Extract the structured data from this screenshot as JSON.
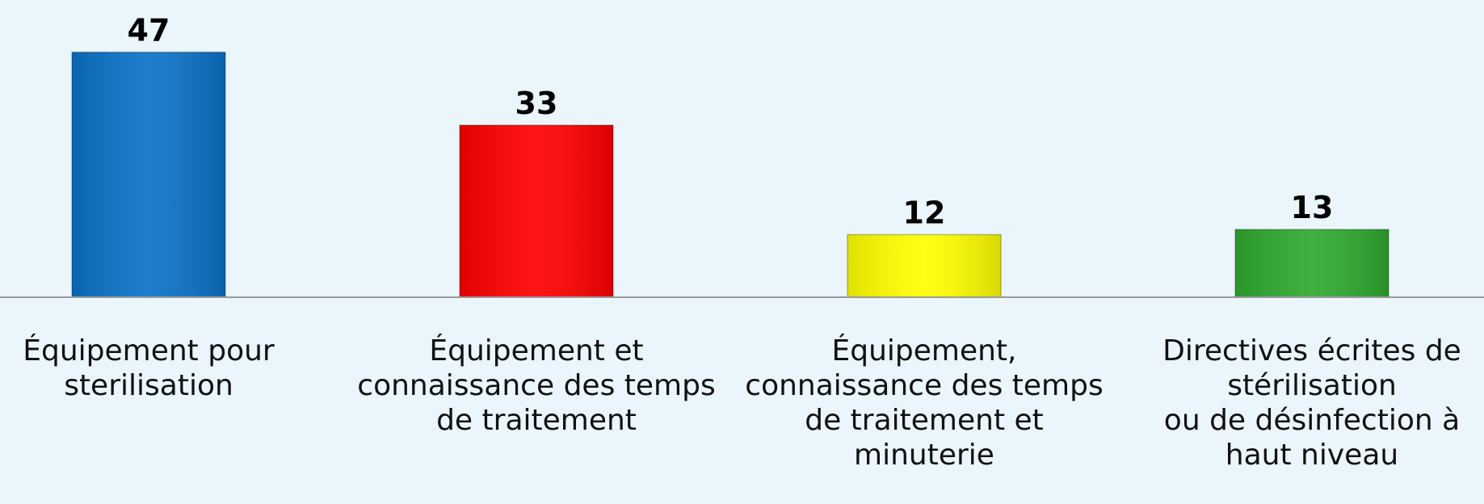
{
  "chart_data": {
    "type": "bar",
    "categories": [
      [
        "Équipement pour",
        "sterilisation"
      ],
      [
        "Équipement et",
        "connaissance des temps",
        "de traitement"
      ],
      [
        "Équipement,",
        "connaissance des temps",
        "de traitement et",
        "minuterie"
      ],
      [
        "Directives écrites de",
        "stérilisation",
        "ou de désinfection à",
        "haut niveau"
      ]
    ],
    "values": [
      47,
      33,
      12,
      13
    ],
    "colors": [
      "#0a72c8",
      "#ff0000",
      "#ffff00",
      "#2fa92f"
    ],
    "ylim": [
      0,
      57
    ]
  }
}
